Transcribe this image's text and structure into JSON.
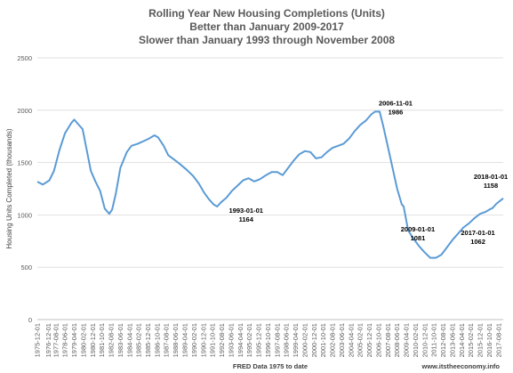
{
  "chart_data": {
    "type": "line",
    "title_lines": [
      "Rolling Year New Housing Completions (Units)",
      "Better than January 2009-2017",
      "Slower than January 1993 through November 2008"
    ],
    "xlabel": "FRED Data 1975 to date",
    "ylabel": "Housing Units Completed (thousands)",
    "ylim": [
      0,
      2500
    ],
    "yticks": [
      0,
      500,
      1000,
      1500,
      2000,
      2500
    ],
    "grid": true,
    "legend": "none",
    "line_color": "#5b9bd5",
    "watermark": "www.itstheeconomy.info",
    "xticks": [
      "1975-12-01",
      "1976-12-01",
      "1977-08-01",
      "1978-06-01",
      "1979-04-01",
      "1980-02-01",
      "1980-12-01",
      "1981-10-01",
      "1982-08-01",
      "1983-06-01",
      "1984-04-01",
      "1985-02-01",
      "1985-12-01",
      "1986-10-01",
      "1987-08-01",
      "1988-06-01",
      "1989-04-01",
      "1990-02-01",
      "1990-12-01",
      "1991-10-01",
      "1992-08-01",
      "1993-06-01",
      "1994-04-01",
      "1995-02-01",
      "1995-12-01",
      "1996-10-01",
      "1997-08-01",
      "1998-06-01",
      "1999-04-01",
      "2000-02-01",
      "2000-12-01",
      "2001-10-01",
      "2002-08-01",
      "2003-06-01",
      "2004-04-01",
      "2005-02-01",
      "2005-12-01",
      "2006-10-01",
      "2007-08-01",
      "2008-06-01",
      "2009-04-01",
      "2010-02-01",
      "2010-12-01",
      "2011-10-01",
      "2012-08-01",
      "2013-06-01",
      "2014-04-01",
      "2015-02-01",
      "2015-12-01",
      "2016-10-01",
      "2017-08-01"
    ],
    "series": [
      {
        "x": [
          "1975-12-01",
          "1976-06-01",
          "1977-01-01",
          "1977-06-01",
          "1977-12-01",
          "1978-06-01",
          "1979-01-01",
          "1979-04-01",
          "1979-08-01",
          "1980-01-01",
          "1980-06-01",
          "1980-10-01",
          "1981-03-01",
          "1981-08-01",
          "1982-01-01",
          "1982-06-01",
          "1982-09-01",
          "1983-01-01",
          "1983-06-01",
          "1984-01-01",
          "1984-06-01",
          "1985-01-01",
          "1985-06-01",
          "1986-01-01",
          "1986-07-01",
          "1986-11-01",
          "1987-05-01",
          "1987-10-01",
          "1988-04-01",
          "1988-10-01",
          "1989-06-01",
          "1990-01-01",
          "1990-07-01",
          "1991-01-01",
          "1991-06-01",
          "1991-11-01",
          "1992-03-01",
          "1992-07-01",
          "1993-01-01",
          "1993-07-01",
          "1994-01-01",
          "1994-07-01",
          "1995-01-01",
          "1995-07-01",
          "1996-01-01",
          "1996-08-01",
          "1997-02-01",
          "1997-08-01",
          "1998-02-01",
          "1998-08-01",
          "1999-02-01",
          "1999-08-01",
          "2000-02-01",
          "2000-08-01",
          "2001-02-01",
          "2001-08-01",
          "2002-02-01",
          "2002-08-01",
          "2003-02-01",
          "2003-08-01",
          "2004-02-01",
          "2004-08-01",
          "2005-02-01",
          "2005-08-01",
          "2006-02-01",
          "2006-06-01",
          "2006-11-01",
          "2007-03-01",
          "2007-08-01",
          "2008-01-01",
          "2008-06-01",
          "2008-11-01",
          "2009-01-01",
          "2009-06-01",
          "2009-12-01",
          "2010-06-01",
          "2010-12-01",
          "2011-06-01",
          "2011-12-01",
          "2012-06-01",
          "2012-12-01",
          "2013-06-01",
          "2013-12-01",
          "2014-06-01",
          "2014-12-01",
          "2015-06-01",
          "2015-12-01",
          "2016-06-01",
          "2016-12-01",
          "2017-01-01",
          "2017-06-01",
          "2018-01-01"
        ],
        "values": [
          1317,
          1290,
          1330,
          1420,
          1620,
          1780,
          1880,
          1910,
          1870,
          1820,
          1600,
          1420,
          1320,
          1230,
          1060,
          1010,
          1050,
          1200,
          1450,
          1600,
          1660,
          1680,
          1700,
          1730,
          1760,
          1740,
          1660,
          1570,
          1530,
          1490,
          1430,
          1370,
          1300,
          1210,
          1150,
          1100,
          1080,
          1120,
          1164,
          1230,
          1280,
          1330,
          1350,
          1320,
          1340,
          1380,
          1410,
          1410,
          1380,
          1450,
          1520,
          1580,
          1610,
          1600,
          1540,
          1550,
          1600,
          1640,
          1660,
          1680,
          1730,
          1800,
          1860,
          1900,
          1960,
          1986,
          1986,
          1850,
          1650,
          1450,
          1250,
          1100,
          1081,
          850,
          770,
          700,
          640,
          590,
          590,
          620,
          690,
          760,
          820,
          880,
          920,
          970,
          1010,
          1030,
          1060,
          1062,
          1110,
          1158
        ]
      }
    ],
    "annotations": [
      {
        "date_line": "1993-01-01",
        "value_line": "1164",
        "x": "1993-01-01",
        "y": 1164
      },
      {
        "date_line": "2006-11-01",
        "value_line": "1986",
        "x": "2006-11-01",
        "y": 1986
      },
      {
        "date_line": "2009-01-01",
        "value_line": "1081",
        "x": "2009-01-01",
        "y": 1081
      },
      {
        "date_line": "2018-01-01",
        "value_line": "1158",
        "x": "2018-01-01",
        "y": 1158
      },
      {
        "date_line": "2017-01-01",
        "value_line": "1062",
        "x": "2017-01-01",
        "y": 1062
      }
    ]
  }
}
